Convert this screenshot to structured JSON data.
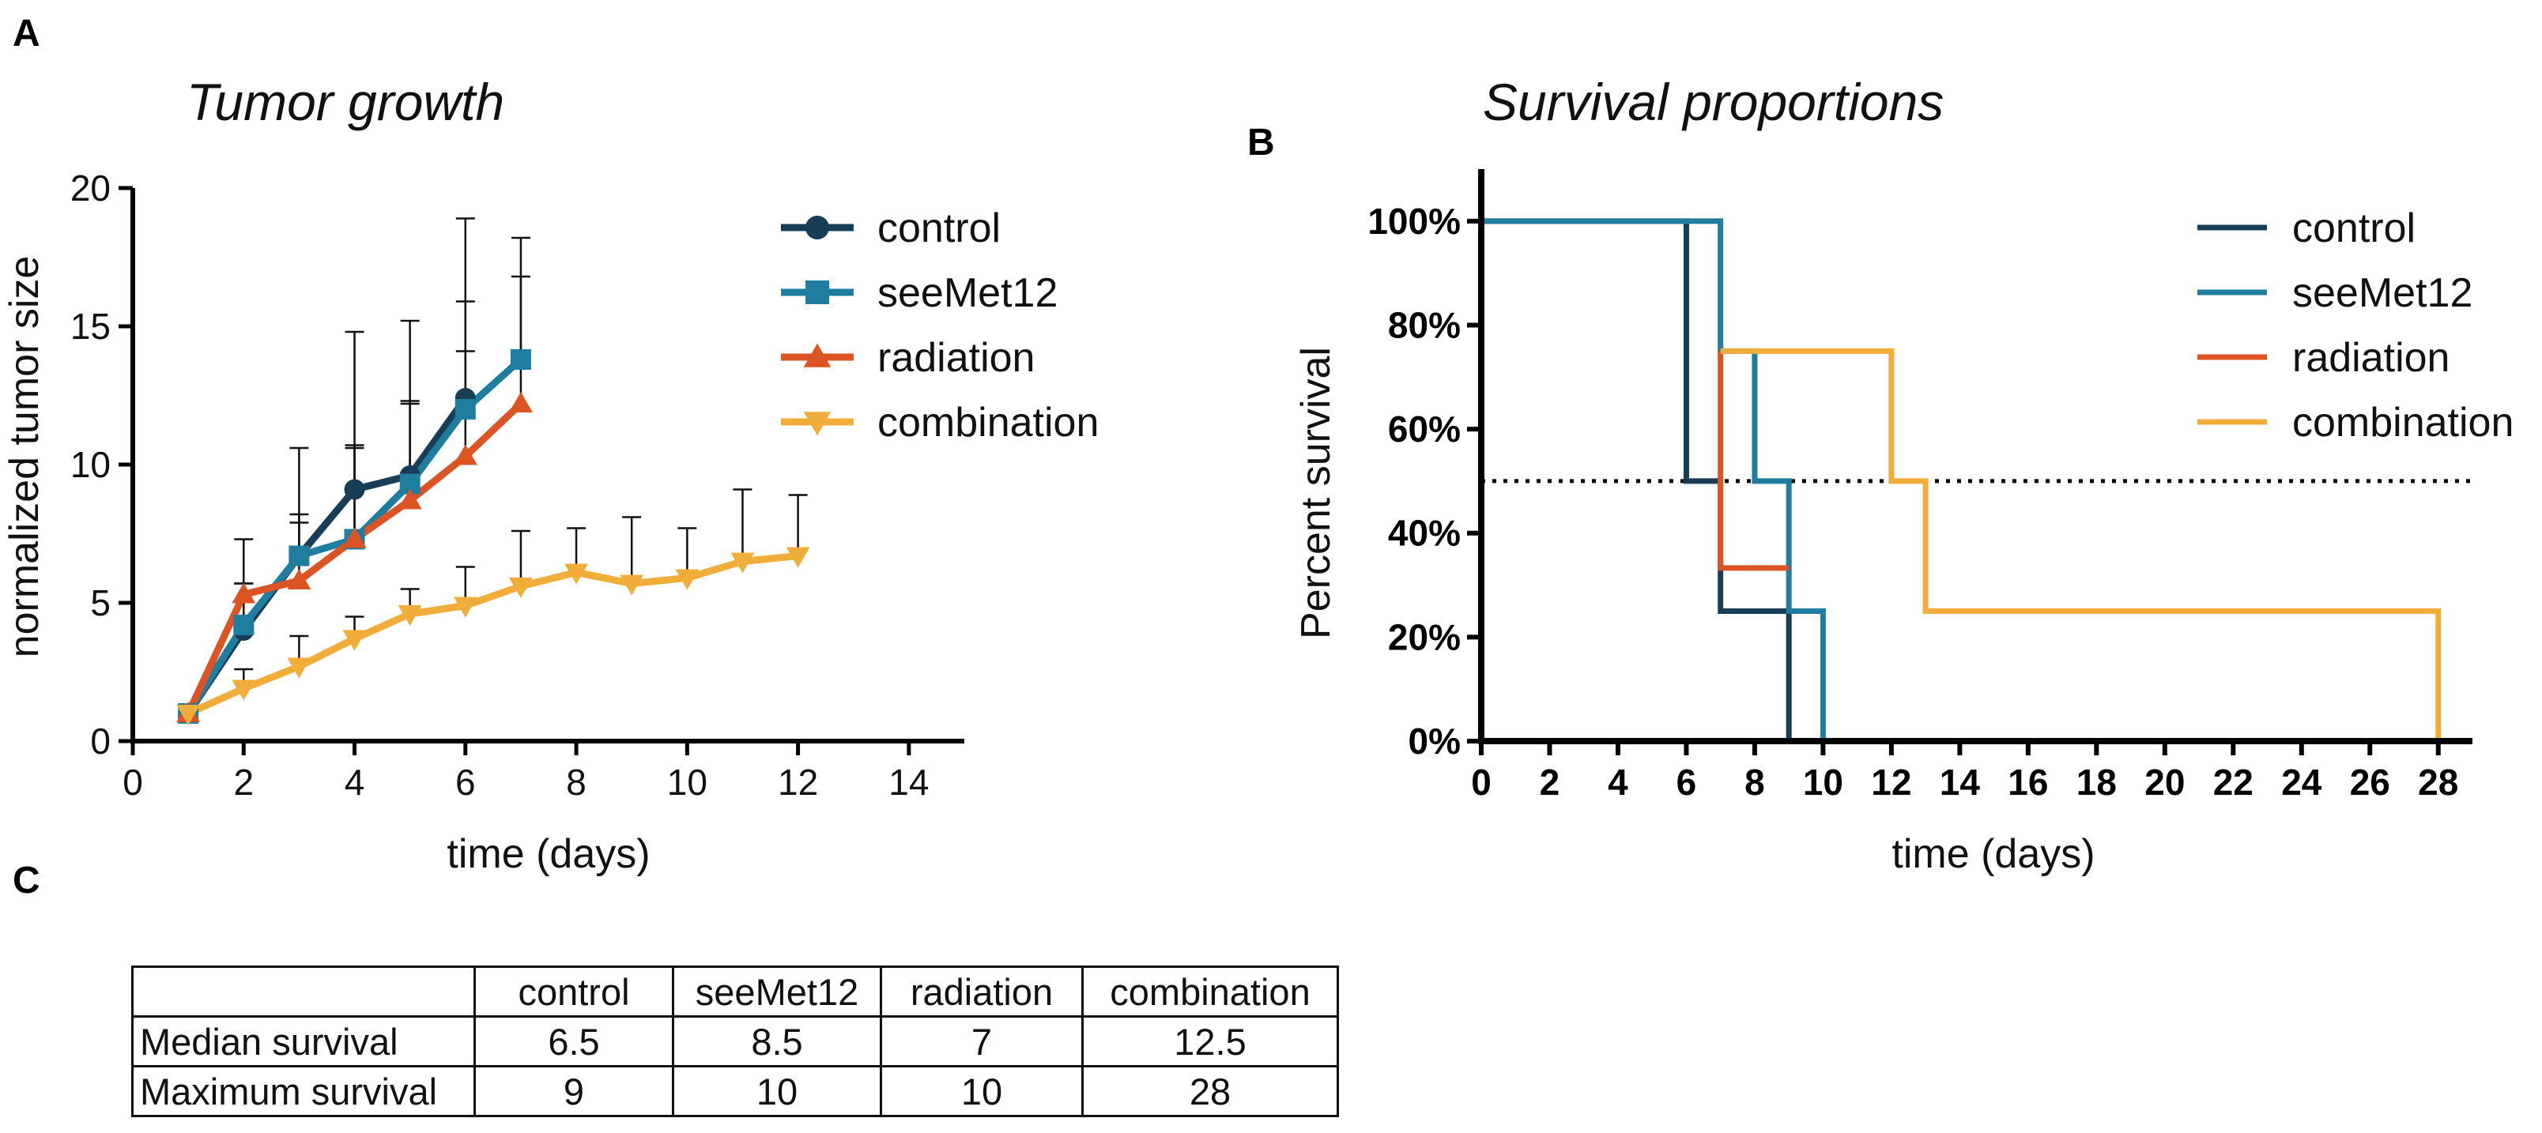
{
  "panels": {
    "a": "A",
    "b": "B",
    "c": "C"
  },
  "colors": {
    "control": "#173d57",
    "seeMet12": "#1f7da0",
    "radiation": "#dc5424",
    "combination": "#f1ad3a",
    "axis": "#000000",
    "error_bar": "#111111"
  },
  "chart_data": [
    {
      "type": "line",
      "title": "Tumor growth",
      "xlabel": "time (days)",
      "ylabel": "normalized tumor size",
      "xlim": [
        0,
        15
      ],
      "ylim": [
        0,
        20
      ],
      "xticks": [
        0,
        2,
        4,
        6,
        8,
        10,
        12,
        14
      ],
      "yticks": [
        0,
        5,
        10,
        15,
        20
      ],
      "legend_position": "right",
      "series": [
        {
          "key": "control",
          "name": "control",
          "marker": "circle",
          "x": [
            1,
            2,
            3,
            4,
            5,
            6
          ],
          "y": [
            1.0,
            4.0,
            6.7,
            9.1,
            9.6,
            12.4
          ],
          "err": [
            0,
            3.3,
            3.9,
            5.7,
            5.6,
            6.5
          ]
        },
        {
          "key": "seeMet12",
          "name": "seeMet12",
          "marker": "square",
          "x": [
            1,
            2,
            3,
            4,
            5,
            6,
            7
          ],
          "y": [
            1.0,
            4.2,
            6.7,
            7.3,
            9.3,
            12.0,
            13.8
          ],
          "err": [
            0,
            1.5,
            1.5,
            3.3,
            3.0,
            3.9,
            4.4
          ]
        },
        {
          "key": "radiation",
          "name": "radiation",
          "marker": "triangle-up",
          "x": [
            1,
            2,
            3,
            4,
            5,
            6,
            7
          ],
          "y": [
            1.0,
            5.3,
            5.8,
            7.3,
            8.7,
            10.3,
            12.2
          ],
          "err": [
            0,
            0.4,
            2.1,
            3.4,
            3.5,
            3.8,
            4.6
          ]
        },
        {
          "key": "combination",
          "name": "combination",
          "marker": "triangle-down",
          "x": [
            1,
            2,
            3,
            4,
            5,
            6,
            7,
            8,
            9,
            10,
            11,
            12
          ],
          "y": [
            1.0,
            1.9,
            2.7,
            3.7,
            4.6,
            4.9,
            5.6,
            6.1,
            5.7,
            5.9,
            6.5,
            6.7
          ],
          "err": [
            0,
            0.7,
            1.1,
            0.8,
            0.9,
            1.4,
            2.0,
            1.6,
            2.4,
            1.8,
            2.6,
            2.2
          ]
        }
      ]
    },
    {
      "type": "line",
      "subtype": "survival-step",
      "title": "Survival proportions",
      "xlabel": "time (days)",
      "ylabel": "Percent survival",
      "xlim": [
        0,
        29
      ],
      "ylim": [
        0,
        110
      ],
      "xticks": [
        0,
        2,
        4,
        6,
        8,
        10,
        12,
        14,
        16,
        18,
        20,
        22,
        24,
        26,
        28
      ],
      "yticks": [
        0,
        20,
        40,
        60,
        80,
        100
      ],
      "ytick_suffix": "%",
      "reference_line": {
        "y": 50,
        "style": "dotted"
      },
      "legend_position": "top-right",
      "series": [
        {
          "key": "control",
          "name": "control",
          "steps": [
            [
              0,
              100
            ],
            [
              6,
              50
            ],
            [
              7,
              25
            ],
            [
              9,
              0
            ]
          ]
        },
        {
          "key": "seeMet12",
          "name": "seeMet12",
          "steps": [
            [
              0,
              100
            ],
            [
              7,
              75
            ],
            [
              8,
              50
            ],
            [
              9,
              25
            ],
            [
              10,
              0
            ]
          ]
        },
        {
          "key": "radiation",
          "name": "radiation",
          "steps": [
            [
              7,
              75
            ],
            [
              7,
              33.3
            ],
            [
              9,
              33.3
            ]
          ]
        },
        {
          "key": "combination",
          "name": "combination",
          "steps": [
            [
              7,
              75
            ],
            [
              12,
              50
            ],
            [
              13,
              25
            ],
            [
              28,
              0
            ]
          ]
        }
      ]
    },
    {
      "type": "table",
      "columns": [
        "",
        "control",
        "seeMet12",
        "radiation",
        "combination"
      ],
      "rows": [
        {
          "label": "Median survival",
          "values": [
            "6.5",
            "8.5",
            "7",
            "12.5"
          ]
        },
        {
          "label": "Maximum survival",
          "values": [
            "9",
            "10",
            "10",
            "28"
          ]
        }
      ]
    }
  ]
}
